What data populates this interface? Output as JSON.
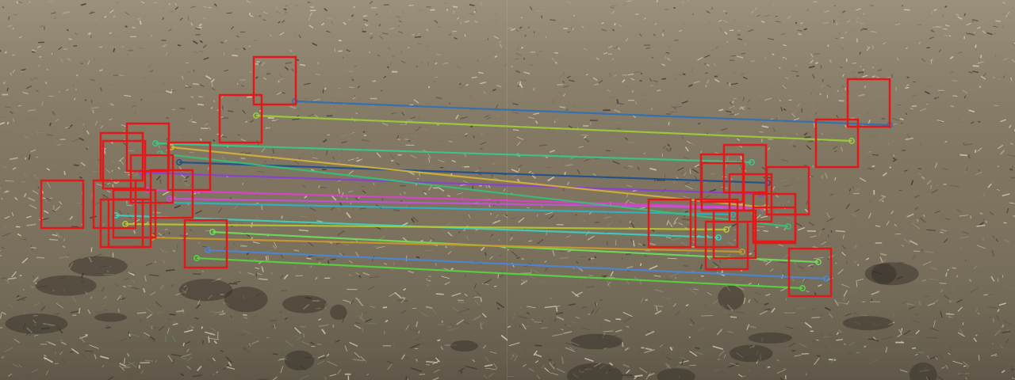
{
  "scene": {
    "description_type": "keypoint-matching visualization over two photos of dry grass",
    "colors": {
      "grass_light": "#a69a86",
      "grass_mid": "#7d735f",
      "grass_dark": "#4b463b",
      "soil": "#2e2a24",
      "box": "#e31919"
    },
    "matches": [
      {
        "color": "#2f6fb8"
      },
      {
        "color": "#9ccf35"
      },
      {
        "color": "#37c98b"
      },
      {
        "color": "#1e4f8c"
      },
      {
        "color": "#8a3fd6"
      },
      {
        "color": "#e03fd0"
      },
      {
        "color": "#2ab5c8"
      },
      {
        "color": "#c84fe0"
      },
      {
        "color": "#3ad2c4"
      },
      {
        "color": "#b7c92e"
      },
      {
        "color": "#6ee05a"
      },
      {
        "color": "#c99a2a"
      },
      {
        "color": "#4a86d8"
      },
      {
        "color": "#52d83c"
      },
      {
        "color": "#d6b23a"
      },
      {
        "color": "#36c07a"
      }
    ]
  }
}
